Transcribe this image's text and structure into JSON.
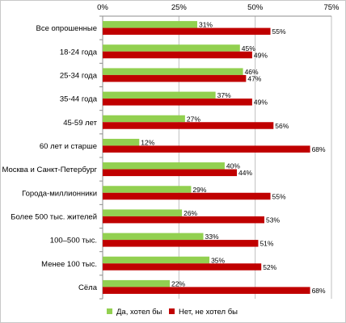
{
  "chart_data": {
    "type": "bar",
    "orientation": "horizontal",
    "title": "",
    "xlabel": "",
    "ylabel": "",
    "xlim": [
      0,
      75
    ],
    "ticks": [
      "0%",
      "25%",
      "50%",
      "75%"
    ],
    "tick_values": [
      0,
      25,
      50,
      75
    ],
    "grid": true,
    "legend_position": "bottom",
    "categories": [
      "Все опрошенные",
      "18-24 года",
      "25-34 года",
      "35-44 года",
      "45-59 лет",
      "60 лет и старше",
      "Москва и Санкт-Петербург",
      "Города-миллионники",
      "Более 500 тыс. жителей",
      "100–500 тыс.",
      "Менее 100 тыс.",
      "Сёла"
    ],
    "series": [
      {
        "name": "Да, хотел бы",
        "color": "#92d050",
        "values": [
          31,
          45,
          46,
          37,
          27,
          12,
          40,
          29,
          26,
          33,
          35,
          22
        ],
        "labels": [
          "31%",
          "45%",
          "46%",
          "37%",
          "27%",
          "12%",
          "40%",
          "29%",
          "26%",
          "33%",
          "35%",
          "22%"
        ]
      },
      {
        "name": "Нет, не хотел бы",
        "color": "#c00000",
        "values": [
          55,
          49,
          47,
          49,
          56,
          68,
          44,
          55,
          53,
          51,
          52,
          68
        ],
        "labels": [
          "55%",
          "49%",
          "47%",
          "49%",
          "56%",
          "68%",
          "44%",
          "55%",
          "53%",
          "51%",
          "52%",
          "68%"
        ]
      }
    ]
  }
}
